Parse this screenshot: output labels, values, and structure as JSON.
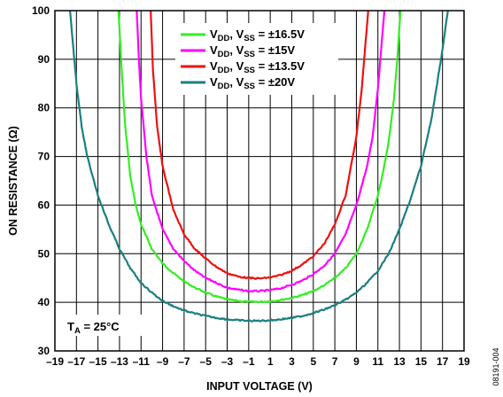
{
  "chart_data": {
    "type": "line",
    "title": "",
    "xlabel": "INPUT VOLTAGE (V)",
    "ylabel": "ON RESISTANCE (Ω)",
    "xlim": [
      -19,
      19
    ],
    "ylim": [
      30,
      100
    ],
    "grid": true,
    "x_ticks": [
      -19,
      -17,
      -15,
      -13,
      -11,
      -9,
      -7,
      -5,
      -3,
      -1,
      1,
      3,
      5,
      7,
      9,
      11,
      13,
      15,
      17,
      19
    ],
    "x_tick_labels": [
      "–19",
      "–17",
      "–15",
      "–13",
      "–11",
      "–9",
      "–7",
      "–5",
      "–3",
      "–1",
      "1",
      "3",
      "5",
      "7",
      "9",
      "11",
      "13",
      "15",
      "17",
      "19"
    ],
    "y_ticks": [
      30,
      40,
      50,
      60,
      70,
      80,
      90,
      100
    ],
    "y_tick_labels": [
      "30",
      "40",
      "50",
      "60",
      "70",
      "80",
      "90",
      "100"
    ],
    "legend_position": "top-center",
    "series": [
      {
        "name": "±16.5V",
        "legend": {
          "v1": "V",
          "s1": "DD",
          "sep": ", ",
          "v2": "V",
          "s2": "SS",
          "tail": " = ±16.5V"
        },
        "color": "#33ee22",
        "x": [
          -13.1,
          -12.8,
          -12.5,
          -12.0,
          -11.5,
          -11.0,
          -10.0,
          -9.0,
          -8.0,
          -7.0,
          -6.0,
          -5.0,
          -4.0,
          -3.0,
          -2.0,
          -1.0,
          0.0,
          1.0,
          2.0,
          3.0,
          4.0,
          5.0,
          6.0,
          7.0,
          8.0,
          9.0,
          10.0,
          11.0,
          11.5,
          12.0,
          12.5,
          12.8,
          13.1
        ],
        "y": [
          100,
          88,
          77,
          66,
          60,
          56,
          51,
          48,
          46,
          44.3,
          43,
          42,
          41.2,
          40.6,
          40.3,
          40.1,
          40.1,
          40.2,
          40.5,
          40.9,
          41.5,
          42.3,
          43.5,
          45,
          47,
          50,
          55,
          62,
          67,
          73,
          82,
          90,
          100
        ]
      },
      {
        "name": "±15V",
        "legend": {
          "v1": "V",
          "s1": "DD",
          "sep": ", ",
          "v2": "V",
          "s2": "SS",
          "tail": " = ±15V"
        },
        "color": "#ff00ff",
        "x": [
          -11.4,
          -11.2,
          -11.0,
          -10.5,
          -10.0,
          -9.0,
          -8.0,
          -7.0,
          -6.0,
          -5.0,
          -4.0,
          -3.0,
          -2.0,
          -1.0,
          0.0,
          1.0,
          2.0,
          3.0,
          4.0,
          5.0,
          6.0,
          7.0,
          8.0,
          9.0,
          10.0,
          10.5,
          11.0,
          11.3,
          11.6
        ],
        "y": [
          100,
          90,
          82,
          70,
          62,
          55,
          51,
          48.5,
          46.5,
          45,
          44,
          43,
          42.6,
          42.3,
          42.3,
          42.5,
          42.9,
          43.6,
          44.5,
          45.8,
          47.5,
          50,
          54,
          60,
          68,
          74,
          84,
          92,
          100
        ]
      },
      {
        "name": "±13.5V",
        "legend": {
          "v1": "V",
          "s1": "DD",
          "sep": ", ",
          "v2": "V",
          "s2": "SS",
          "tail": " = ±13.5V"
        },
        "color": "#ee1111",
        "x": [
          -10.1,
          -9.9,
          -9.5,
          -9.0,
          -8.0,
          -7.0,
          -6.0,
          -5.0,
          -4.0,
          -3.0,
          -2.0,
          -1.0,
          0.0,
          1.0,
          2.0,
          3.0,
          4.0,
          5.0,
          6.0,
          7.0,
          8.0,
          9.0,
          9.5,
          9.8,
          10.1
        ],
        "y": [
          100,
          88,
          76,
          68,
          59,
          54,
          51,
          49,
          47.3,
          46,
          45.3,
          45,
          44.9,
          45.1,
          45.6,
          46.5,
          47.8,
          49.5,
          52,
          56,
          62,
          74,
          84,
          92,
          100
        ]
      },
      {
        "name": "±20V",
        "legend": {
          "v1": "V",
          "s1": "DD",
          "sep": ", ",
          "v2": "V",
          "s2": "SS",
          "tail": " = ±20V"
        },
        "color": "#1a7f80",
        "x": [
          -17.6,
          -17.0,
          -16.5,
          -16.0,
          -15.0,
          -14.0,
          -13.0,
          -12.0,
          -11.0,
          -10.0,
          -9.0,
          -8.0,
          -7.0,
          -6.0,
          -5.0,
          -4.0,
          -3.0,
          -2.0,
          -1.0,
          0.0,
          1.0,
          2.0,
          3.0,
          4.0,
          5.0,
          6.0,
          7.0,
          8.0,
          9.0,
          10.0,
          11.0,
          12.0,
          13.0,
          14.0,
          15.0,
          16.0,
          16.5,
          17.0,
          17.5
        ],
        "y": [
          100,
          85,
          76,
          70,
          62,
          56,
          51,
          47,
          44,
          42,
          40.3,
          39.2,
          38.3,
          37.7,
          37.2,
          36.8,
          36.5,
          36.3,
          36.2,
          36.2,
          36.3,
          36.5,
          36.8,
          37.2,
          37.8,
          38.5,
          39.4,
          40.5,
          42,
          44,
          46.5,
          50,
          55,
          61,
          68,
          78,
          85,
          92,
          100
        ]
      }
    ],
    "annotations": [
      {
        "main": "T",
        "sub": "A",
        "tail": " = 25°C"
      }
    ],
    "figure_id": "08191-004"
  }
}
